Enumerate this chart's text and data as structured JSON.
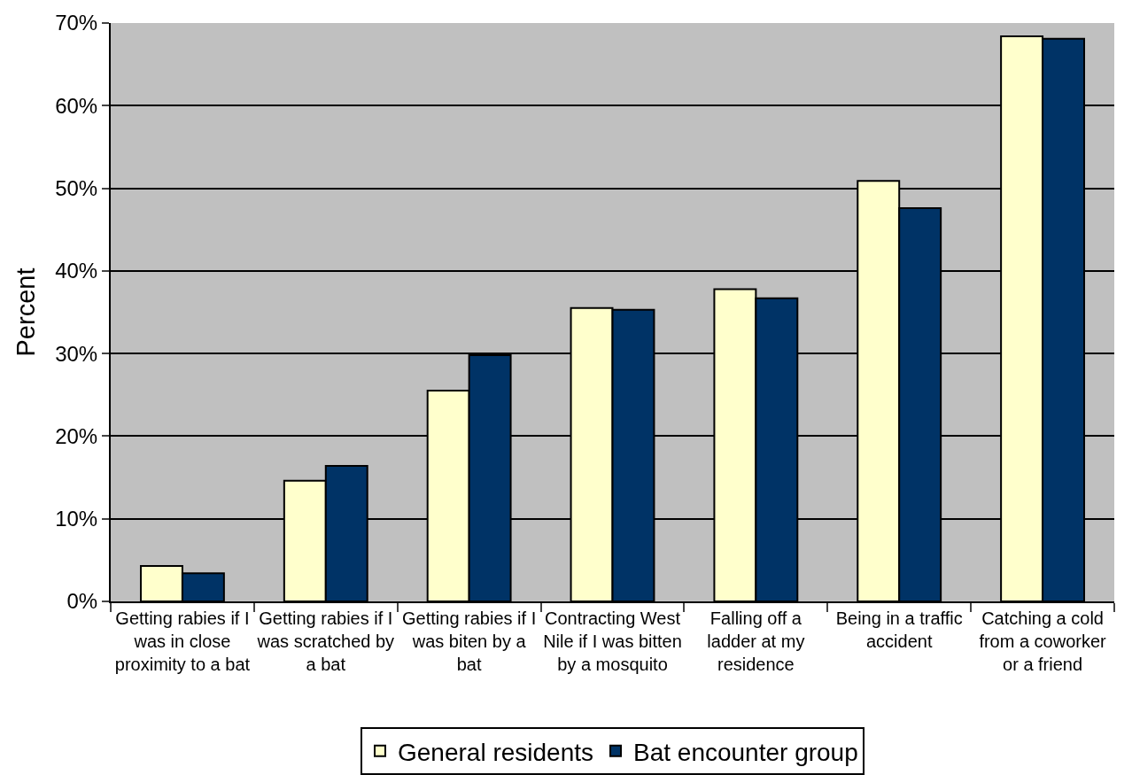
{
  "chart_data": {
    "type": "bar",
    "ylabel": "Percent",
    "categories": [
      "Getting rabies if I was in close proximity to a bat",
      "Getting rabies if I was scratched by a bat",
      "Getting rabies if I was biten by a bat",
      "Contracting West Nile if I was bitten by a mosquito",
      "Falling off a ladder at my residence",
      "Being in a traffic accident",
      "Catching a cold from a coworker or a friend"
    ],
    "series": [
      {
        "name": "General residents",
        "color": "#ffffcc",
        "values": [
          4.3,
          14.6,
          25.5,
          35.5,
          37.8,
          50.9,
          68.4
        ]
      },
      {
        "name": "Bat encounter group",
        "color": "#003366",
        "values": [
          3.4,
          16.4,
          29.8,
          35.3,
          36.7,
          47.6,
          68.1
        ]
      }
    ],
    "ylim": [
      0,
      70
    ],
    "yticks": [
      {
        "value": 0,
        "label": "0%"
      },
      {
        "value": 10,
        "label": "10%"
      },
      {
        "value": 20,
        "label": "20%"
      },
      {
        "value": 30,
        "label": "30%"
      },
      {
        "value": 40,
        "label": "40%"
      },
      {
        "value": 50,
        "label": "50%"
      },
      {
        "value": 60,
        "label": "60%"
      },
      {
        "value": 70,
        "label": "70%"
      }
    ],
    "grid": "y",
    "legend": "bottom"
  }
}
